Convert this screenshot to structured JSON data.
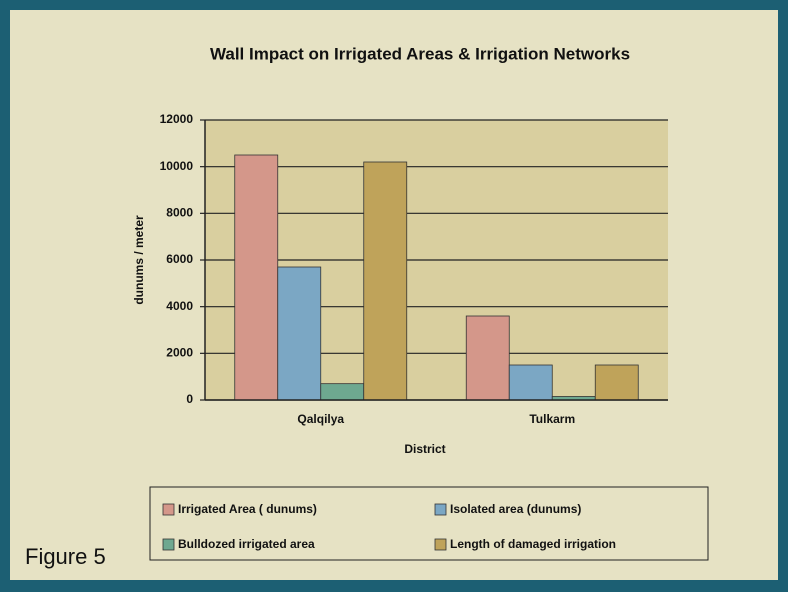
{
  "caption": "Figure 5",
  "chart_data": {
    "type": "bar",
    "title": "Wall Impact on Irrigated Areas & Irrigation Networks",
    "xlabel": "District",
    "ylabel": "dunums / meter",
    "categories": [
      "Qalqilya",
      "Tulkarm"
    ],
    "series": [
      {
        "name": "Irrigated Area ( dunums)",
        "color": "#d4978a",
        "values": [
          10500,
          3600
        ]
      },
      {
        "name": "Isolated area (dunums)",
        "color": "#7ba7c4",
        "values": [
          5700,
          1500
        ]
      },
      {
        "name": "Bulldozed irrigated area",
        "color": "#6ea890",
        "values": [
          700,
          150
        ]
      },
      {
        "name": "Length of damaged irrigation",
        "color": "#bfa35a",
        "values": [
          10200,
          1500
        ]
      }
    ],
    "ylim": [
      0,
      12000
    ],
    "yticks": [
      0,
      2000,
      4000,
      6000,
      8000,
      10000,
      12000
    ],
    "grid": true,
    "legend": "bottom"
  }
}
